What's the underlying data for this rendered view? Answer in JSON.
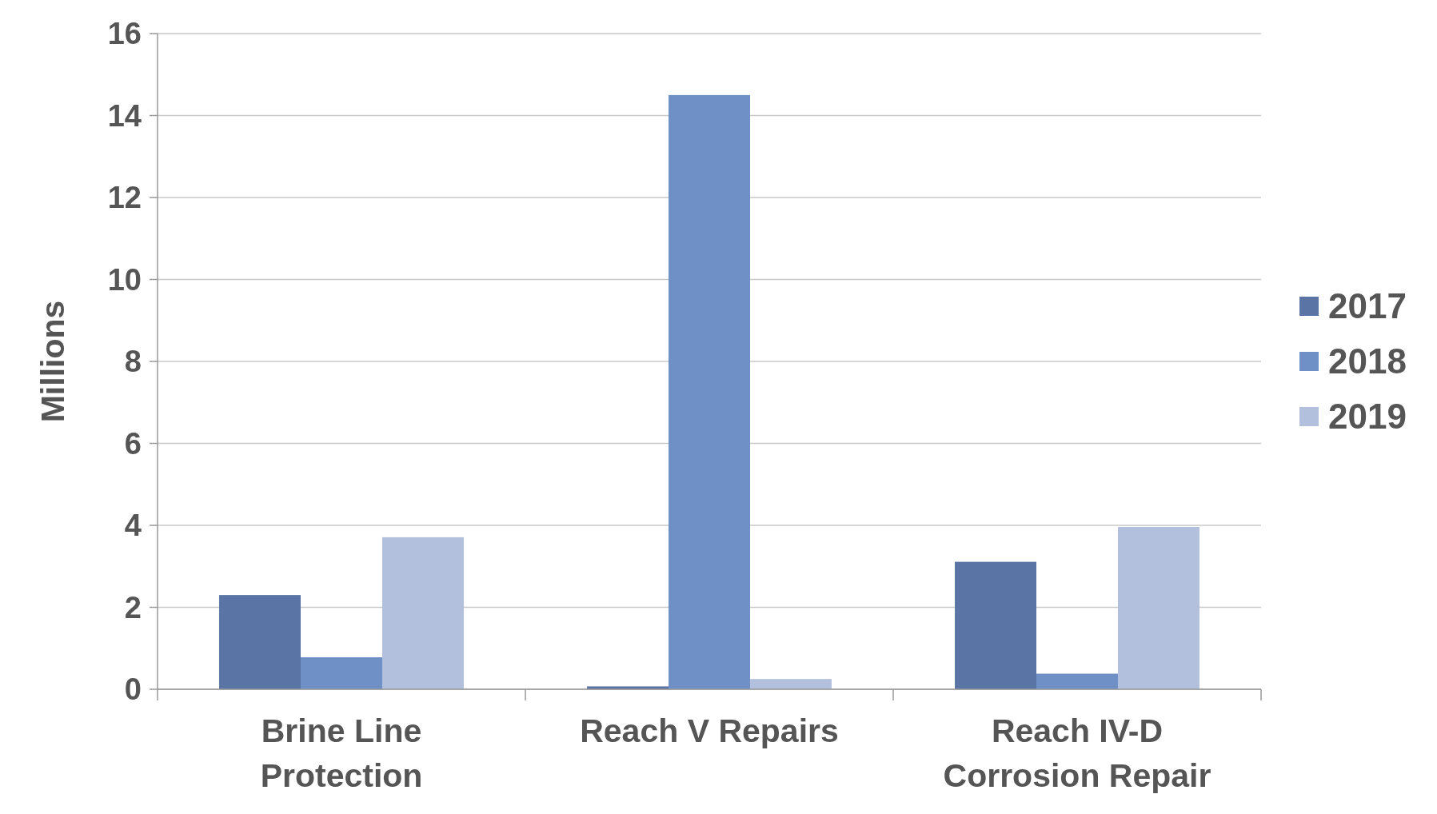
{
  "chart_data": {
    "type": "bar",
    "ylabel": "Millions",
    "categories": [
      "Brine Line Protection",
      "Reach V Repairs",
      "Reach IV-D Corrosion Repair"
    ],
    "series": [
      {
        "name": "2017",
        "color": "#5a75a5",
        "values": [
          2.3,
          0.07,
          3.11
        ]
      },
      {
        "name": "2018",
        "color": "#6f8fc7",
        "values": [
          0.78,
          14.5,
          0.38
        ]
      },
      {
        "name": "2019",
        "color": "#b2c0dd",
        "values": [
          3.71,
          0.25,
          3.96
        ]
      }
    ],
    "ylim": [
      0,
      16
    ],
    "yticks": [
      0,
      2,
      4,
      6,
      8,
      10,
      12,
      14,
      16
    ],
    "grid": "y",
    "legend": "right"
  }
}
